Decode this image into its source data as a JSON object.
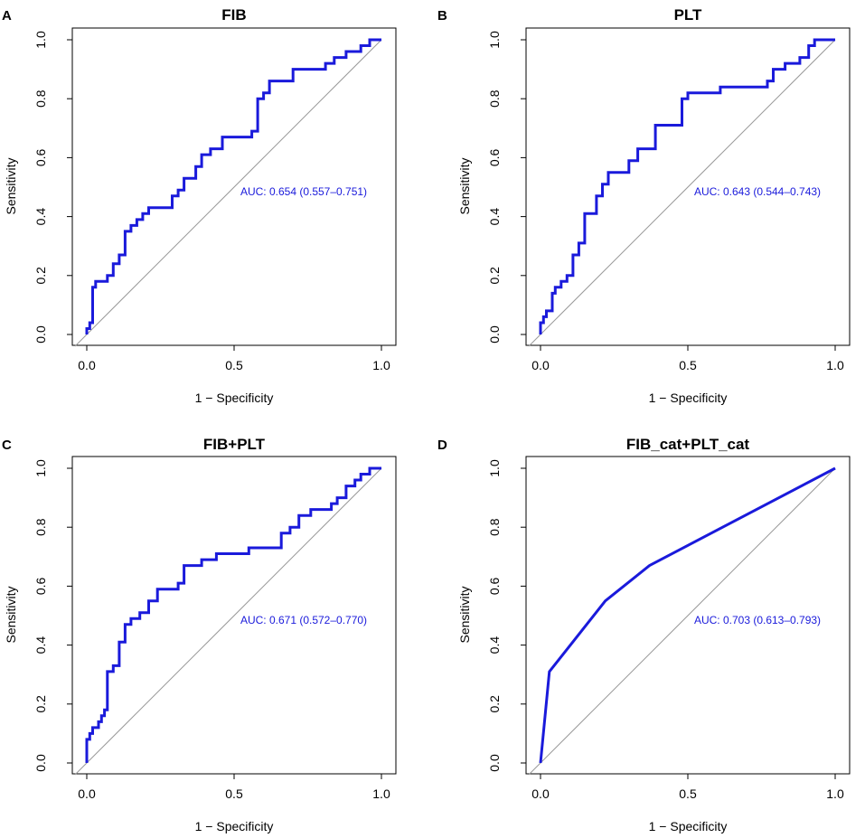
{
  "chart_data": [
    {
      "type": "line",
      "panel": "A",
      "title": "FIB",
      "xlabel": "1 − Specificity",
      "ylabel": "Sensitivity",
      "xlim": [
        0,
        1
      ],
      "ylim": [
        0,
        1
      ],
      "x_ticks": [
        "0.0",
        "0.5",
        "1.0"
      ],
      "y_ticks": [
        "0.0",
        "0.2",
        "0.4",
        "0.6",
        "0.8",
        "1.0"
      ],
      "annotation": "AUC: 0.654 (0.557–0.751)",
      "series_color": "#1a1adb",
      "reference_color": "#999999",
      "series": [
        {
          "name": "ROC",
          "x": [
            0,
            0,
            0.01,
            0.01,
            0.02,
            0.02,
            0.03,
            0.03,
            0.07,
            0.07,
            0.09,
            0.09,
            0.11,
            0.11,
            0.13,
            0.13,
            0.15,
            0.15,
            0.17,
            0.17,
            0.19,
            0.19,
            0.21,
            0.21,
            0.29,
            0.29,
            0.31,
            0.31,
            0.33,
            0.33,
            0.37,
            0.37,
            0.39,
            0.39,
            0.42,
            0.42,
            0.46,
            0.46,
            0.56,
            0.56,
            0.58,
            0.58,
            0.6,
            0.6,
            0.62,
            0.62,
            0.7,
            0.7,
            0.81,
            0.81,
            0.84,
            0.84,
            0.88,
            0.88,
            0.93,
            0.93,
            0.96,
            0.96,
            1
          ],
          "y": [
            0,
            0.02,
            0.02,
            0.04,
            0.04,
            0.16,
            0.16,
            0.18,
            0.18,
            0.2,
            0.2,
            0.24,
            0.24,
            0.27,
            0.27,
            0.35,
            0.35,
            0.37,
            0.37,
            0.39,
            0.39,
            0.41,
            0.41,
            0.43,
            0.43,
            0.47,
            0.47,
            0.49,
            0.49,
            0.53,
            0.53,
            0.57,
            0.57,
            0.61,
            0.61,
            0.63,
            0.63,
            0.67,
            0.67,
            0.69,
            0.69,
            0.8,
            0.8,
            0.82,
            0.82,
            0.86,
            0.86,
            0.9,
            0.9,
            0.92,
            0.92,
            0.94,
            0.94,
            0.96,
            0.96,
            0.98,
            0.98,
            1,
            1
          ]
        }
      ]
    },
    {
      "type": "line",
      "panel": "B",
      "title": "PLT",
      "xlabel": "1 − Specificity",
      "ylabel": "Sensitivity",
      "xlim": [
        0,
        1
      ],
      "ylim": [
        0,
        1
      ],
      "x_ticks": [
        "0.0",
        "0.5",
        "1.0"
      ],
      "y_ticks": [
        "0.0",
        "0.2",
        "0.4",
        "0.6",
        "0.8",
        "1.0"
      ],
      "annotation": "AUC: 0.643 (0.544–0.743)",
      "series_color": "#1a1adb",
      "reference_color": "#999999",
      "series": [
        {
          "name": "ROC",
          "x": [
            0,
            0,
            0.01,
            0.01,
            0.02,
            0.02,
            0.04,
            0.04,
            0.05,
            0.05,
            0.07,
            0.07,
            0.09,
            0.09,
            0.11,
            0.11,
            0.13,
            0.13,
            0.15,
            0.15,
            0.19,
            0.19,
            0.21,
            0.21,
            0.23,
            0.23,
            0.3,
            0.3,
            0.33,
            0.33,
            0.39,
            0.39,
            0.48,
            0.48,
            0.5,
            0.5,
            0.61,
            0.61,
            0.77,
            0.77,
            0.79,
            0.79,
            0.83,
            0.83,
            0.88,
            0.88,
            0.91,
            0.91,
            0.93,
            0.93,
            1
          ],
          "y": [
            0,
            0.04,
            0.04,
            0.06,
            0.06,
            0.08,
            0.08,
            0.14,
            0.14,
            0.16,
            0.16,
            0.18,
            0.18,
            0.2,
            0.2,
            0.27,
            0.27,
            0.31,
            0.31,
            0.41,
            0.41,
            0.47,
            0.47,
            0.51,
            0.51,
            0.55,
            0.55,
            0.59,
            0.59,
            0.63,
            0.63,
            0.71,
            0.71,
            0.8,
            0.8,
            0.82,
            0.82,
            0.84,
            0.84,
            0.86,
            0.86,
            0.9,
            0.9,
            0.92,
            0.92,
            0.94,
            0.94,
            0.98,
            0.98,
            1,
            1
          ]
        }
      ]
    },
    {
      "type": "line",
      "panel": "C",
      "title": "FIB+PLT",
      "xlabel": "1 − Specificity",
      "ylabel": "Sensitivity",
      "xlim": [
        0,
        1
      ],
      "ylim": [
        0,
        1
      ],
      "x_ticks": [
        "0.0",
        "0.5",
        "1.0"
      ],
      "y_ticks": [
        "0.0",
        "0.2",
        "0.4",
        "0.6",
        "0.8",
        "1.0"
      ],
      "annotation": "AUC: 0.671 (0.572–0.770)",
      "series_color": "#1a1adb",
      "reference_color": "#999999",
      "series": [
        {
          "name": "ROC",
          "x": [
            0,
            0,
            0.01,
            0.01,
            0.02,
            0.02,
            0.04,
            0.04,
            0.05,
            0.05,
            0.06,
            0.06,
            0.07,
            0.07,
            0.09,
            0.09,
            0.11,
            0.11,
            0.13,
            0.13,
            0.15,
            0.15,
            0.18,
            0.18,
            0.21,
            0.21,
            0.24,
            0.24,
            0.31,
            0.31,
            0.33,
            0.33,
            0.39,
            0.39,
            0.44,
            0.44,
            0.55,
            0.55,
            0.66,
            0.66,
            0.69,
            0.69,
            0.72,
            0.72,
            0.76,
            0.76,
            0.83,
            0.83,
            0.85,
            0.85,
            0.88,
            0.88,
            0.91,
            0.91,
            0.93,
            0.93,
            0.96,
            0.96,
            1
          ],
          "y": [
            0,
            0.08,
            0.08,
            0.1,
            0.1,
            0.12,
            0.12,
            0.14,
            0.14,
            0.16,
            0.16,
            0.18,
            0.18,
            0.31,
            0.31,
            0.33,
            0.33,
            0.41,
            0.41,
            0.47,
            0.47,
            0.49,
            0.49,
            0.51,
            0.51,
            0.55,
            0.55,
            0.59,
            0.59,
            0.61,
            0.61,
            0.67,
            0.67,
            0.69,
            0.69,
            0.71,
            0.71,
            0.73,
            0.73,
            0.78,
            0.78,
            0.8,
            0.8,
            0.84,
            0.84,
            0.86,
            0.86,
            0.88,
            0.88,
            0.9,
            0.9,
            0.94,
            0.94,
            0.96,
            0.96,
            0.98,
            0.98,
            1,
            1
          ]
        }
      ]
    },
    {
      "type": "line",
      "panel": "D",
      "title": "FIB_cat+PLT_cat",
      "xlabel": "1 − Specificity",
      "ylabel": "Sensitivity",
      "xlim": [
        0,
        1
      ],
      "ylim": [
        0,
        1
      ],
      "x_ticks": [
        "0.0",
        "0.5",
        "1.0"
      ],
      "y_ticks": [
        "0.0",
        "0.2",
        "0.4",
        "0.6",
        "0.8",
        "1.0"
      ],
      "annotation": "AUC: 0.703 (0.613–0.793)",
      "series_color": "#1a1adb",
      "reference_color": "#999999",
      "series": [
        {
          "name": "ROC",
          "x": [
            0,
            0.03,
            0.22,
            0.37,
            1
          ],
          "y": [
            0,
            0.31,
            0.55,
            0.67,
            1
          ]
        }
      ]
    }
  ]
}
